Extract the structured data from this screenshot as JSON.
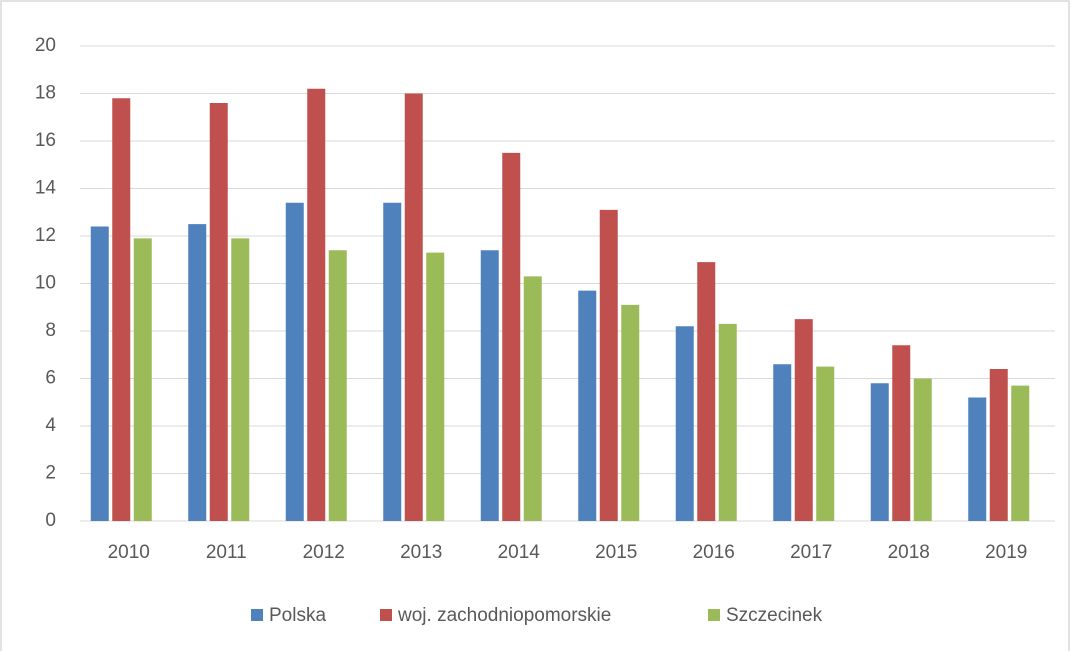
{
  "chart_data": {
    "type": "bar",
    "categories": [
      "2010",
      "2011",
      "2012",
      "2013",
      "2014",
      "2015",
      "2016",
      "2017",
      "2018",
      "2019"
    ],
    "series": [
      {
        "name": "Polska",
        "color": "#4f81bd",
        "values": [
          12.4,
          12.5,
          13.4,
          13.4,
          11.4,
          9.7,
          8.2,
          6.6,
          5.8,
          5.2
        ]
      },
      {
        "name": "woj. zachodniopomorskie",
        "color": "#c0504d",
        "values": [
          17.8,
          17.6,
          18.2,
          18.0,
          15.5,
          13.1,
          10.9,
          8.5,
          7.4,
          6.4
        ]
      },
      {
        "name": "Szczecinek",
        "color": "#9bbb59",
        "values": [
          11.9,
          11.9,
          11.4,
          11.3,
          10.3,
          9.1,
          8.3,
          6.5,
          6.0,
          5.7
        ]
      }
    ],
    "ylim": [
      0,
      20
    ],
    "yticks": [
      0,
      2,
      4,
      6,
      8,
      10,
      12,
      14,
      16,
      18,
      20
    ],
    "grid": true,
    "legend": "bottom"
  }
}
